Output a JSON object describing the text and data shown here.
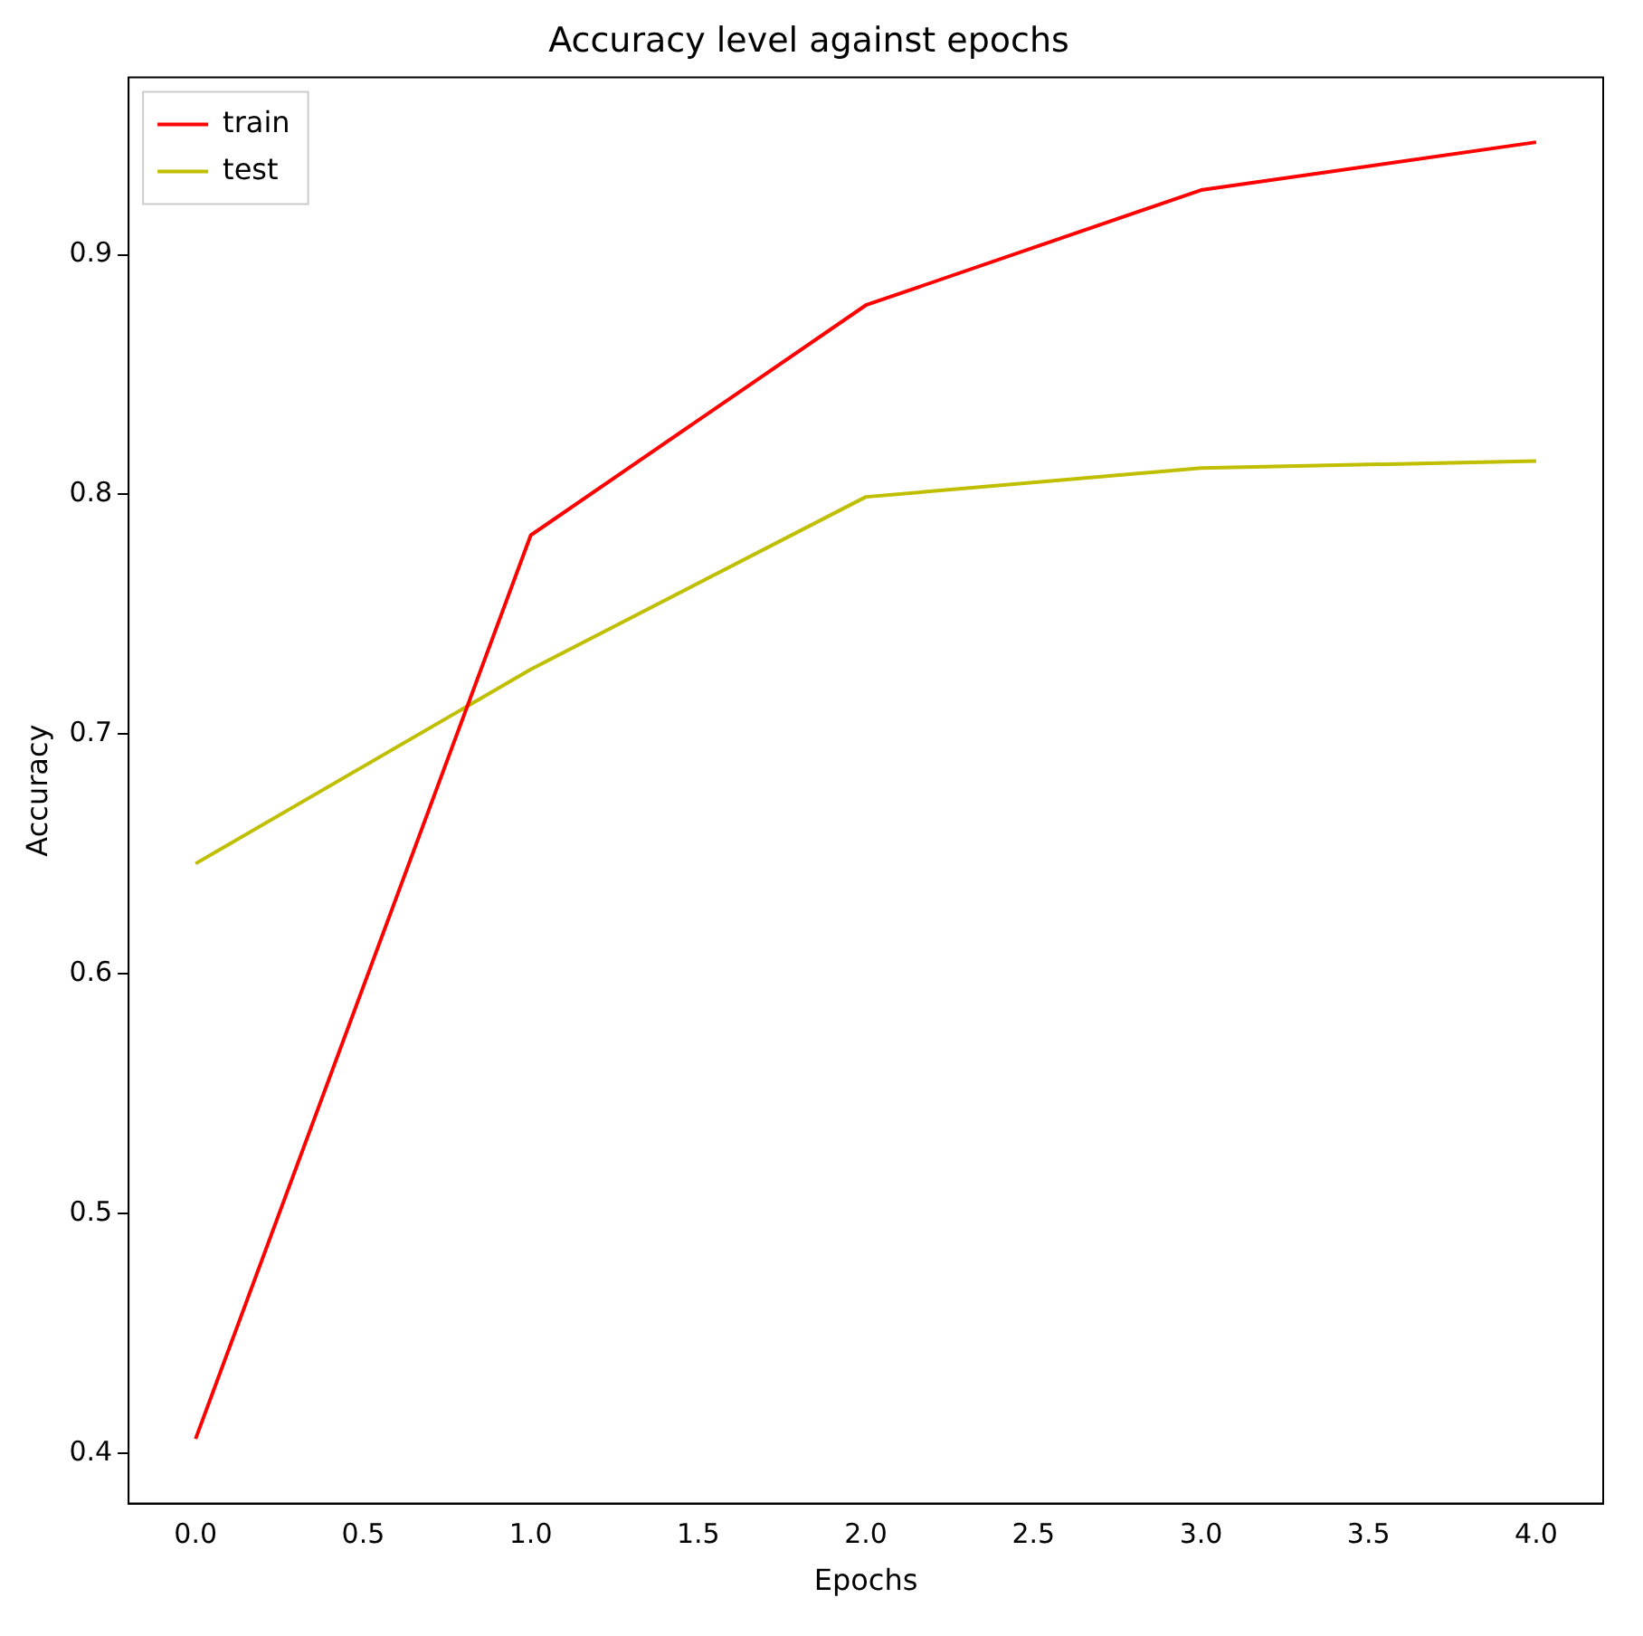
{
  "chart_data": {
    "type": "line",
    "title": "Accuracy level against epochs",
    "xlabel": "Epochs",
    "ylabel": "Accuracy",
    "x": [
      0,
      1,
      2,
      3,
      4
    ],
    "series": [
      {
        "name": "train",
        "color": "#ff0000",
        "values": [
          0.406,
          0.783,
          0.879,
          0.927,
          0.947
        ]
      },
      {
        "name": "test",
        "color": "#bfbf00",
        "values": [
          0.646,
          0.727,
          0.799,
          0.811,
          0.814
        ]
      }
    ],
    "xlim": [
      -0.2,
      4.2
    ],
    "xticks": [
      {
        "value": 0,
        "label": "0.0"
      },
      {
        "value": 0.5,
        "label": "0.5"
      },
      {
        "value": 1,
        "label": "1.0"
      },
      {
        "value": 1.5,
        "label": "1.5"
      },
      {
        "value": 2,
        "label": "2.0"
      },
      {
        "value": 2.5,
        "label": "2.5"
      },
      {
        "value": 3,
        "label": "3.0"
      },
      {
        "value": 3.5,
        "label": "3.5"
      },
      {
        "value": 4,
        "label": "4.0"
      }
    ],
    "ylim": [
      0.379,
      0.974
    ],
    "yticks": [
      0.4,
      0.5,
      0.6,
      0.7,
      0.8,
      0.9
    ],
    "grid": false,
    "legend": "top left",
    "marker": "none",
    "line_style": "solid"
  }
}
